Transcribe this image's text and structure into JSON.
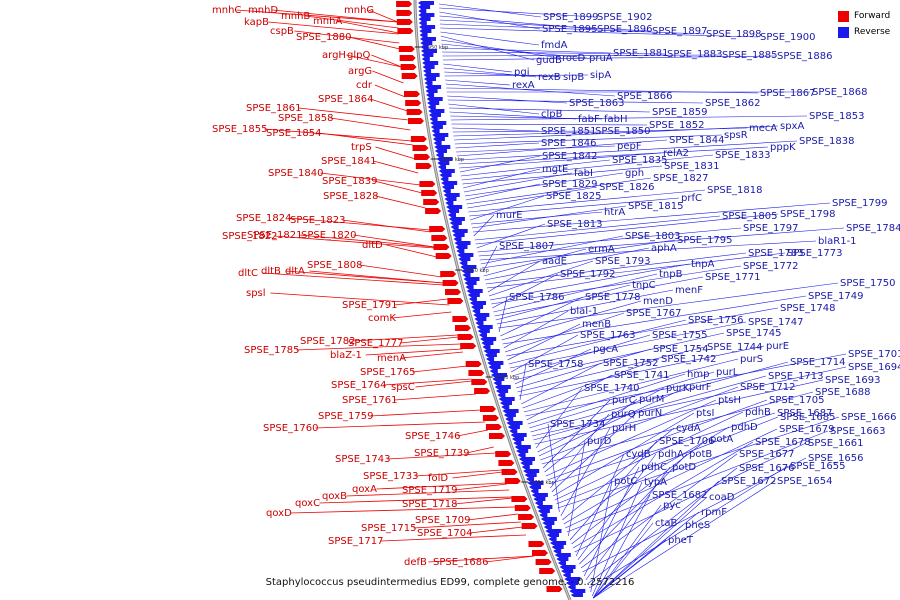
{
  "caption": "Staphylococcus pseudintermedius ED99, complete genome. - 0..2572216",
  "legend": [
    {
      "label": "Forward",
      "color": "#ee0000"
    },
    {
      "label": "Reverse",
      "color": "#1a1aee"
    }
  ],
  "ticks": [
    "1950 kbp",
    "1900 kbp",
    "1850 kbp",
    "1800 kbp",
    "1750 kbp"
  ],
  "forward_labels": [
    "mnhC",
    "mnhD",
    "mnhB",
    "mnhA",
    "mnhG",
    "kapB",
    "cspB",
    "SPSE_1880",
    "argH",
    "glpQ",
    "argG",
    "cdr",
    "SPSE_1864",
    "SPSE_1861",
    "SPSE_1858",
    "SPSE_1855",
    "SPSE_1854",
    "trpS",
    "SPSE_1841",
    "SPSE_1840",
    "SPSE_1839",
    "SPSE_1828",
    "SPSE_1824",
    "SPSE_1823",
    "SPSE_1822",
    "SPSE_1821",
    "SPSE_1820",
    "dltD",
    "SPSE_1808",
    "dltC",
    "dltB",
    "dltA",
    "spsl",
    "SPSE_1791",
    "comK",
    "SPSE_1782",
    "SPSE_1777",
    "SPSE_1785",
    "blaZ-1",
    "menA",
    "SPSE_1765",
    "SPSE_1764",
    "spsC",
    "SPSE_1761",
    "SPSE_1759",
    "SPSE_1760",
    "SPSE_1746",
    "SPSE_1743",
    "SPSE_1739",
    "SPSE_1733",
    "folD",
    "qoxA",
    "qoxB",
    "qoxC",
    "qoxD",
    "SPSE_1719",
    "SPSE_1718",
    "SPSE_1709",
    "SPSE_1715",
    "SPSE_1704",
    "SPSE_1717",
    "defB",
    "SPSE_1686"
  ],
  "reverse_labels": [
    "SPSE_1899",
    "SPSE_1902",
    "SPSE_1895",
    "SPSE_1896",
    "SPSE_1897",
    "SPSE_1898",
    "SPSE_1900",
    "fmdA",
    "gudB",
    "rocD",
    "pruA",
    "SPSE_1881",
    "SPSE_1883",
    "SPSE_1885",
    "SPSE_1886",
    "pgi",
    "rexB",
    "sipB",
    "sipA",
    "rexA",
    "SPSE_1866",
    "SPSE_1867",
    "SPSE_1868",
    "SPSE_1863",
    "SPSE_1862",
    "clpB",
    "SPSE_1859",
    "fabF",
    "fabH",
    "SPSE_1853",
    "SPSE_1852",
    "SPSE_1851",
    "SPSE_1850",
    "mecA",
    "spxA",
    "spsR",
    "SPSE_1846",
    "pepF",
    "SPSE_1844",
    "SPSE_1838",
    "pppK",
    "relA2",
    "SPSE_1842",
    "SPSE_1835",
    "SPSE_1833",
    "SPSE_1831",
    "mgtE",
    "fabI",
    "gph",
    "SPSE_1829",
    "SPSE_1827",
    "SPSE_1826",
    "SPSE_1818",
    "prfC",
    "SPSE_1825",
    "htrA",
    "SPSE_1815",
    "SPSE_1799",
    "murE",
    "SPSE_1805",
    "SPSE_1798",
    "SPSE_1813",
    "SPSE_1797",
    "SPSE_1784",
    "blaR1-1",
    "SPSE_1803",
    "SPSE_1795",
    "SPSE_1807",
    "ermA",
    "aphA",
    "SPSE_1783",
    "SPSE_1773",
    "aadE",
    "SPSE_1793",
    "tnpA",
    "SPSE_1772",
    "SPSE_1792",
    "tnpB",
    "SPSE_1771",
    "tnpC",
    "menF",
    "SPSE_1750",
    "SPSE_1786",
    "SPSE_1778",
    "menD",
    "SPSE_1749",
    "blaI-1",
    "SPSE_1767",
    "SPSE_1748",
    "menB",
    "SPSE_1756",
    "SPSE_1747",
    "SPSE_1763",
    "SPSE_1755",
    "SPSE_1745",
    "pgcA",
    "SPSE_1754",
    "SPSE_1744",
    "purE",
    "SPSE_1758",
    "SPSE_1752",
    "SPSE_1742",
    "purS",
    "SPSE_1701",
    "SPSE_1741",
    "hmp",
    "purL",
    "SPSE_1714",
    "SPSE_1694",
    "SPSE_1713",
    "SPSE_1693",
    "SPSE_1740",
    "purK",
    "purF",
    "SPSE_1712",
    "SPSE_1688",
    "purC",
    "purM",
    "ptsH",
    "SPSE_1705",
    "SPSE_1687",
    "purQ",
    "purN",
    "ptsI",
    "pdhB",
    "SPSE_1685",
    "SPSE_1666",
    "SPSE_1734",
    "purH",
    "cydA",
    "pdhD",
    "SPSE_1679",
    "SPSE_1663",
    "purD",
    "SPSE_1706",
    "potA",
    "SPSE_1678",
    "SPSE_1661",
    "cydB",
    "pdhA",
    "potB",
    "SPSE_1677",
    "SPSE_1656",
    "pdhC",
    "potD",
    "SPSE_1676",
    "SPSE_1655",
    "potC",
    "typA",
    "SPSE_1672",
    "SPSE_1654",
    "SPSE_1682",
    "coaD",
    "pyc",
    "rpmF",
    "ctaB",
    "pheS",
    "pheT"
  ]
}
